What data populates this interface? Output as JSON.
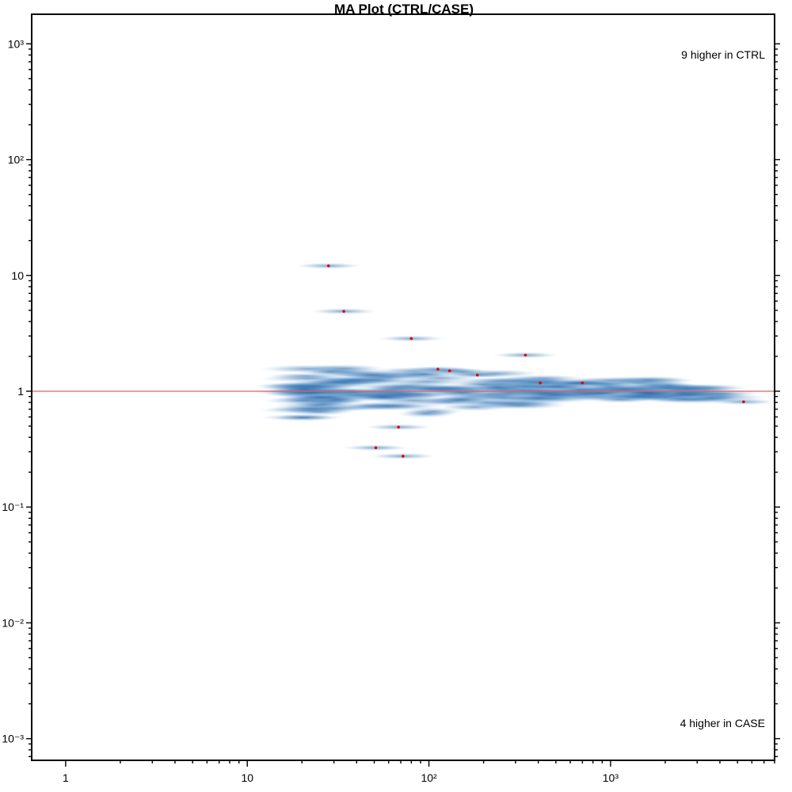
{
  "chart_data": {
    "type": "scatter",
    "title": "MA Plot (CTRL/CASE)",
    "xlabel": "",
    "ylabel": "",
    "x_scale": "log",
    "y_scale": "log",
    "xlim": [
      0.65,
      8000
    ],
    "ylim": [
      0.00065,
      1800
    ],
    "x_ticks": [
      1,
      10,
      100,
      1000
    ],
    "x_tick_labels": [
      "1",
      "10",
      "10²",
      "10³"
    ],
    "y_ticks": [
      0.001,
      0.01,
      0.1,
      1,
      10,
      100,
      1000
    ],
    "y_tick_labels": [
      "10⁻³",
      "10⁻²",
      "10⁻¹",
      "1",
      "10",
      "10²",
      "10³"
    ],
    "reference_line": {
      "y": 1,
      "color": "#e06060"
    },
    "density_color": "#1f5fa0",
    "point_color": "#e00000",
    "points": [
      {
        "x": 28,
        "y": 12.1
      },
      {
        "x": 34,
        "y": 4.9
      },
      {
        "x": 80,
        "y": 2.85
      },
      {
        "x": 340,
        "y": 2.05
      },
      {
        "x": 112,
        "y": 1.55
      },
      {
        "x": 130,
        "y": 1.5
      },
      {
        "x": 185,
        "y": 1.38
      },
      {
        "x": 410,
        "y": 1.18
      },
      {
        "x": 700,
        "y": 1.18
      },
      {
        "x": 5400,
        "y": 0.81
      },
      {
        "x": 68,
        "y": 0.49
      },
      {
        "x": 51,
        "y": 0.325
      },
      {
        "x": 72,
        "y": 0.275
      }
    ],
    "annotations": {
      "upper_right": "9 higher in CTRL",
      "lower_right": "4 higher in CASE"
    }
  }
}
